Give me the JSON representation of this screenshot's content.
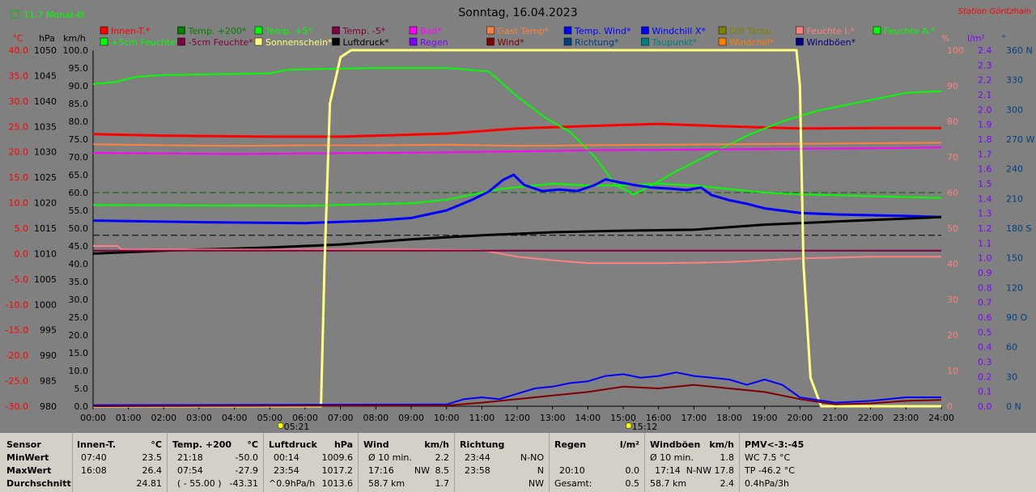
{
  "header": {
    "monthly": "11.7 Monat-Ø",
    "title": "Sonntag, 16.04.2023",
    "station": "Station Göritzhain"
  },
  "colors": {
    "background": "#808080",
    "innen_t": "#ff0000",
    "temp_200": "#00ff00",
    "luftdruck": "#000000",
    "wind": "#0000ff",
    "windboeen": "#800000",
    "sonnenschein": "#ffff80",
    "feuchte_i": "#ff8080",
    "gast_temp": "#ff8040",
    "bad": "#ff00ff",
    "temp_minus5": "#800040"
  },
  "legend": [
    {
      "label": "Innen-T.*",
      "color": "#ff0000"
    },
    {
      "label": "Temp. +200*",
      "color": "#008000"
    },
    {
      "label": "Temp. +5*",
      "color": "#00ff00"
    },
    {
      "label": "Temp. -5*",
      "color": "#800040"
    },
    {
      "label": "Bad*",
      "color": "#ff00ff"
    },
    {
      "label": "Gast Temp*",
      "color": "#ff8040"
    },
    {
      "label": "Temp. Wind*",
      "color": "#0000ff"
    },
    {
      "label": "Windchill X*",
      "color": "#0000ff"
    },
    {
      "label": "Diff Temp.",
      "color": "#808000"
    },
    {
      "label": "Feuchte I.*",
      "color": "#ff8080"
    },
    {
      "label": "Feuchte A.*",
      "color": "#00ff00"
    },
    {
      "label": "+5cm Feuchte*",
      "color": "#00ff00"
    },
    {
      "label": "-5cm Feuchte*",
      "color": "#800040"
    },
    {
      "label": "Sonnenschein*",
      "color": "#ffff80"
    },
    {
      "label": "Luftdruck*",
      "color": "#000000"
    },
    {
      "label": "Regen",
      "color": "#8000ff"
    },
    {
      "label": "Wind*",
      "color": "#800000"
    },
    {
      "label": "Richtung*",
      "color": "#004080"
    },
    {
      "label": "Taupunkt*",
      "color": "#008080"
    },
    {
      "label": "Windchill*",
      "color": "#ff8000"
    },
    {
      "label": "Windböen*",
      "color": "#000080"
    }
  ],
  "chart_data": {
    "type": "line",
    "axes": {
      "temp": {
        "unit": "°C",
        "ticks": [
          "40.0",
          "35.0",
          "30.0",
          "25.0",
          "20.0",
          "15.0",
          "10.0",
          "5.0",
          "0.0",
          "-5.0",
          "-10.0",
          "-15.0",
          "-20.0",
          "-25.0",
          "-30.0"
        ],
        "range": [
          -30,
          40
        ]
      },
      "pressure": {
        "unit": "hPa",
        "ticks": [
          "1050",
          "1045",
          "1040",
          "1035",
          "1030",
          "1025",
          "1020",
          "1015",
          "1010",
          "1005",
          "1000",
          "995",
          "990",
          "985",
          "980"
        ],
        "range": [
          980,
          1050
        ]
      },
      "wind": {
        "unit": "km/h",
        "ticks": [
          "100.0",
          "95.0",
          "90.0",
          "85.0",
          "80.0",
          "75.0",
          "70.0",
          "65.0",
          "60.0",
          "55.0",
          "50.0",
          "45.0",
          "40.0",
          "35.0",
          "30.0",
          "25.0",
          "20.0",
          "15.0",
          "10.0",
          "5.0",
          "0.0"
        ],
        "range": [
          0,
          100
        ]
      },
      "humidity": {
        "unit": "%",
        "ticks": [
          "100",
          "90",
          "80",
          "70",
          "60",
          "50",
          "40",
          "30",
          "20",
          "10",
          "0"
        ],
        "range": [
          0,
          100
        ]
      },
      "rain": {
        "unit": "l/m²",
        "ticks": [
          "2.4",
          "2.3",
          "2.2",
          "2.1",
          "2.0",
          "1.9",
          "1.8",
          "1.7",
          "1.6",
          "1.5",
          "1.4",
          "1.3",
          "1.2",
          "1.1",
          "1.0",
          "0.9",
          "0.8",
          "0.7",
          "0.6",
          "0.5",
          "0.4",
          "0.3",
          "0.2",
          "0.1",
          "0.0"
        ],
        "range": [
          0,
          2.5
        ]
      },
      "direction": {
        "unit": "°",
        "ticks": [
          "360 N",
          "330",
          "300",
          "270 W",
          "240",
          "210",
          "180 S",
          "150",
          "120",
          "90 O",
          "60",
          "30",
          "0 N"
        ],
        "range": [
          0,
          360
        ]
      }
    },
    "x_ticks": [
      "00:00",
      "01:00",
      "02:00",
      "03:00",
      "04:00",
      "05:00",
      "06:00",
      "07:00",
      "08:00",
      "09:00",
      "10:00",
      "11:00",
      "12:00",
      "13:00",
      "14:00",
      "15:00",
      "16:00",
      "17:00",
      "18:00",
      "19:00",
      "20:00",
      "21:00",
      "22:00",
      "23:00",
      "24:00"
    ],
    "x_range": [
      0,
      24
    ],
    "sunrise": "05:21",
    "sunset": "15:12",
    "series": [
      {
        "name": "Innen-T.*",
        "axis": "temp",
        "color": "#ff0000",
        "width": 3,
        "points": [
          [
            0,
            23.5
          ],
          [
            2,
            23.2
          ],
          [
            5,
            23.0
          ],
          [
            7,
            23.0
          ],
          [
            10,
            23.6
          ],
          [
            12,
            24.6
          ],
          [
            14,
            25.1
          ],
          [
            16,
            25.5
          ],
          [
            18,
            25.0
          ],
          [
            20,
            24.6
          ],
          [
            22,
            24.7
          ],
          [
            24,
            24.7
          ]
        ]
      },
      {
        "name": "Temp. +5*",
        "axis": "wind",
        "color": "#00ff00",
        "width": 2,
        "points": [
          [
            0,
            90.5
          ],
          [
            0.6,
            91
          ],
          [
            1.2,
            92.5
          ],
          [
            2,
            93
          ],
          [
            5,
            93.5
          ],
          [
            5.5,
            94.5
          ],
          [
            8,
            95
          ],
          [
            10,
            95
          ],
          [
            11.2,
            94
          ],
          [
            12,
            87
          ],
          [
            12.8,
            81
          ],
          [
            13.5,
            77
          ],
          [
            14.2,
            70
          ],
          [
            14.8,
            62
          ],
          [
            15.3,
            59.5
          ],
          [
            15.8,
            62
          ],
          [
            16.5,
            66
          ],
          [
            17.5,
            71
          ],
          [
            18.5,
            76
          ],
          [
            19.5,
            80
          ],
          [
            20.5,
            83
          ],
          [
            22,
            86
          ],
          [
            23,
            88
          ],
          [
            24,
            88.5
          ]
        ]
      },
      {
        "name": "Feuchte A.*",
        "axis": "humidity",
        "color": "#00ff00",
        "width": 2,
        "points": [
          [
            0,
            56.5
          ],
          [
            6,
            56.3
          ],
          [
            9,
            57
          ],
          [
            10,
            58
          ],
          [
            11.5,
            61
          ],
          [
            13,
            62.5
          ],
          [
            14,
            62
          ],
          [
            15,
            62
          ],
          [
            16,
            62.5
          ],
          [
            17,
            62
          ],
          [
            18,
            61
          ],
          [
            19,
            60
          ],
          [
            20,
            59.5
          ],
          [
            22,
            59
          ],
          [
            24,
            58.5
          ]
        ]
      },
      {
        "name": "Temp. Wind*",
        "axis": "temp",
        "color": "#0000ff",
        "width": 3,
        "points": [
          [
            0,
            6.5
          ],
          [
            3,
            6.2
          ],
          [
            6,
            6.0
          ],
          [
            8,
            6.5
          ],
          [
            9,
            7.0
          ],
          [
            10,
            8.5
          ],
          [
            10.7,
            10.5
          ],
          [
            11.2,
            12.2
          ],
          [
            11.6,
            14.5
          ],
          [
            11.9,
            15.5
          ],
          [
            12.2,
            13.5
          ],
          [
            12.7,
            12.3
          ],
          [
            13.2,
            12.6
          ],
          [
            13.7,
            12.3
          ],
          [
            14.2,
            13.5
          ],
          [
            14.5,
            14.6
          ],
          [
            14.9,
            14.0
          ],
          [
            15.3,
            13.5
          ],
          [
            15.8,
            13.0
          ],
          [
            16.3,
            12.8
          ],
          [
            16.8,
            12.5
          ],
          [
            17.2,
            13.0
          ],
          [
            17.5,
            11.5
          ],
          [
            18,
            10.5
          ],
          [
            18.5,
            9.8
          ],
          [
            19,
            8.9
          ],
          [
            20,
            8.0
          ],
          [
            21,
            7.7
          ],
          [
            23,
            7.4
          ],
          [
            24,
            7.2
          ]
        ]
      },
      {
        "name": "Luftdruck*",
        "axis": "pressure",
        "color": "#000000",
        "width": 3,
        "points": [
          [
            0,
            1010
          ],
          [
            2,
            1010.6
          ],
          [
            5,
            1011.2
          ],
          [
            7,
            1011.8
          ],
          [
            9,
            1012.8
          ],
          [
            11,
            1013.6
          ],
          [
            13,
            1014.2
          ],
          [
            15,
            1014.5
          ],
          [
            17,
            1014.7
          ],
          [
            19,
            1015.7
          ],
          [
            21,
            1016.3
          ],
          [
            23,
            1016.9
          ],
          [
            24,
            1017.2
          ]
        ]
      },
      {
        "name": "Feuchte I.*",
        "axis": "humidity",
        "color": "#ff8080",
        "width": 2,
        "points": [
          [
            0,
            45
          ],
          [
            0.7,
            45
          ],
          [
            0.8,
            44
          ],
          [
            9,
            44
          ],
          [
            11,
            43.8
          ],
          [
            12,
            42
          ],
          [
            13,
            41
          ],
          [
            14,
            40.2
          ],
          [
            15,
            40.2
          ],
          [
            16,
            40.2
          ],
          [
            17,
            40.3
          ],
          [
            18,
            40.5
          ],
          [
            19,
            41
          ],
          [
            20,
            41.5
          ],
          [
            22,
            42
          ],
          [
            24,
            42
          ]
        ]
      },
      {
        "name": "Gast Temp*",
        "axis": "temp",
        "color": "#ff8040",
        "width": 2,
        "points": [
          [
            0,
            21.5
          ],
          [
            2,
            21.3
          ],
          [
            4,
            21.2
          ],
          [
            6,
            21.3
          ],
          [
            8,
            21.3
          ],
          [
            10,
            21.4
          ],
          [
            12,
            21.2
          ],
          [
            14,
            21.3
          ],
          [
            16,
            21.4
          ],
          [
            18,
            21.5
          ],
          [
            20,
            21.6
          ],
          [
            22,
            21.7
          ],
          [
            24,
            21.8
          ]
        ]
      },
      {
        "name": "Bad*",
        "axis": "temp",
        "color": "#ff00ff",
        "width": 2,
        "points": [
          [
            0,
            19.8
          ],
          [
            2,
            19.7
          ],
          [
            4,
            19.6
          ],
          [
            6,
            19.7
          ],
          [
            8,
            19.8
          ],
          [
            10,
            19.9
          ],
          [
            12,
            20.1
          ],
          [
            14,
            20.3
          ],
          [
            16,
            20.4
          ],
          [
            18,
            20.5
          ],
          [
            20,
            20.6
          ],
          [
            22,
            20.7
          ],
          [
            24,
            20.9
          ]
        ]
      },
      {
        "name": "Temp. -5*",
        "axis": "temp",
        "color": "#800040",
        "width": 2,
        "points": [
          [
            0,
            0.6
          ],
          [
            24,
            0.6
          ]
        ]
      },
      {
        "name": "Sonnenschein*",
        "axis": "wind",
        "color": "#ffff80",
        "width": 3,
        "points": [
          [
            0,
            0
          ],
          [
            6.45,
            0
          ],
          [
            6.55,
            40
          ],
          [
            6.7,
            85
          ],
          [
            7,
            98
          ],
          [
            7.3,
            100
          ],
          [
            19.9,
            100
          ],
          [
            20,
            90
          ],
          [
            20.1,
            40
          ],
          [
            20.3,
            8
          ],
          [
            20.6,
            0
          ],
          [
            24,
            0
          ]
        ]
      },
      {
        "name": "Wind*",
        "axis": "wind",
        "color": "#0000ff",
        "width": 2,
        "points": [
          [
            0,
            0.3
          ],
          [
            10,
            0.5
          ],
          [
            10.5,
            2
          ],
          [
            11,
            2.5
          ],
          [
            11.5,
            2
          ],
          [
            12,
            3.5
          ],
          [
            12.5,
            5
          ],
          [
            13,
            5.5
          ],
          [
            13.5,
            6.5
          ],
          [
            14,
            7
          ],
          [
            14.5,
            8.5
          ],
          [
            15,
            9
          ],
          [
            15.5,
            8
          ],
          [
            16,
            8.5
          ],
          [
            16.5,
            9.5
          ],
          [
            17,
            8.5
          ],
          [
            17.5,
            8
          ],
          [
            18,
            7.5
          ],
          [
            18.5,
            6
          ],
          [
            19,
            7.5
          ],
          [
            19.5,
            6
          ],
          [
            20,
            2.5
          ],
          [
            21,
            1
          ],
          [
            22,
            1.5
          ],
          [
            23,
            2.5
          ],
          [
            24,
            2.5
          ]
        ]
      },
      {
        "name": "Windböen*",
        "axis": "wind",
        "color": "#800000",
        "width": 2,
        "points": [
          [
            0,
            0
          ],
          [
            10,
            0.2
          ],
          [
            11,
            1
          ],
          [
            12,
            2
          ],
          [
            13,
            3
          ],
          [
            14,
            4
          ],
          [
            15,
            5.5
          ],
          [
            16,
            5
          ],
          [
            17,
            6
          ],
          [
            18,
            5
          ],
          [
            19,
            4
          ],
          [
            20,
            2
          ],
          [
            21,
            0.5
          ],
          [
            22,
            0.8
          ],
          [
            23,
            1.5
          ],
          [
            24,
            1.8
          ]
        ]
      }
    ]
  },
  "table": {
    "rows": [
      "Sensor",
      "MinWert",
      "MaxWert",
      "Durchschnitt"
    ],
    "innen": {
      "title": "Innen-T.",
      "unit": "°C",
      "min_time": "07:40",
      "min": "23.5",
      "max_time": "16:08",
      "max": "26.4",
      "avg": "24.81"
    },
    "temp200": {
      "title": "Temp. +200",
      "unit": "°C",
      "min_time": "21:18",
      "min": "-50.0",
      "max_time": "07:54",
      "max": "-27.9",
      "avg_label": "( - 55.00 )",
      "avg": "-43.31"
    },
    "druck": {
      "title": "Luftdruck",
      "unit": "hPa",
      "min_time": "00:14",
      "min": "1009.6",
      "max_time": "23:54",
      "max": "1017.2",
      "avg_label": "^0.9hPa/h",
      "avg": "1013.6"
    },
    "wind": {
      "title": "Wind",
      "unit": "km/h",
      "min_label": "Ø 10 min.",
      "min": "2.2",
      "max_time": "17:16",
      "max_dir": "NW",
      "max": "8.5",
      "avg_label": "58.7 km",
      "avg": "1.7"
    },
    "richtung": {
      "title": "Richtung",
      "min_time": "23:44",
      "min": "N-NO",
      "max_time": "23:58",
      "max": "N",
      "avg": "NW"
    },
    "regen": {
      "title": "Regen",
      "unit": "l/m²",
      "max_time": "20:10",
      "max": "0.0",
      "avg_label": "Gesamt:",
      "avg": "0.5"
    },
    "boeen": {
      "title": "Windböen",
      "unit": "km/h",
      "min_label": "Ø 10 min.",
      "min": "1.8",
      "max_time": "17:14",
      "max_dir": "N-NW",
      "max": "17.8",
      "avg_label": "58.7 km",
      "avg": "2.4"
    },
    "pmv": {
      "title": "PMV<-3:-45",
      "min": "WC 7.5 °C",
      "max": "TP -46.2 °C",
      "avg": "0.4hPa/3h"
    }
  }
}
